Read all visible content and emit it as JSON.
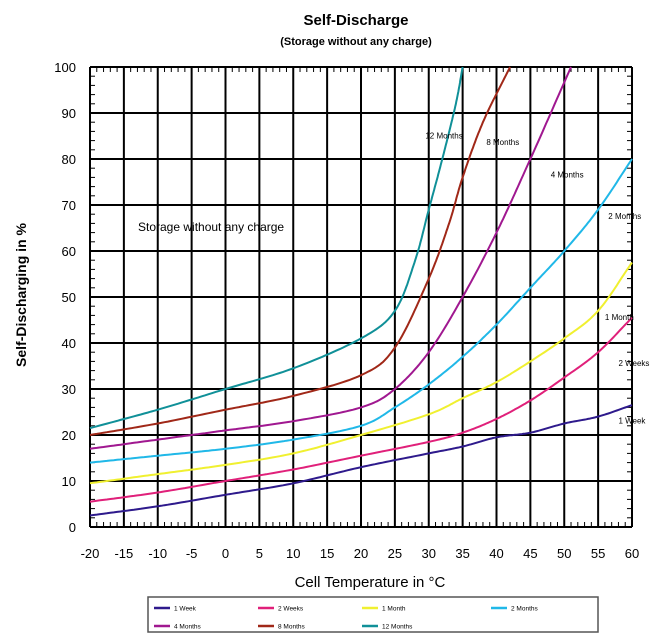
{
  "chart_data": {
    "type": "line",
    "title": "Self-Discharge",
    "subtitle": "(Storage without any charge)",
    "xlabel": "Cell Temperature in °C",
    "ylabel": "Self-Discharging in %",
    "annotation": "Storage without any charge",
    "xlim": [
      -20,
      60
    ],
    "ylim": [
      0,
      100
    ],
    "x_ticks": [
      "-20",
      "-15",
      "-10",
      "-5",
      "0",
      "5",
      "10",
      "15",
      "20",
      "25",
      "30",
      "35",
      "40",
      "45",
      "50",
      "55",
      "60"
    ],
    "y_ticks": [
      "0",
      "10",
      "20",
      "30",
      "40",
      "50",
      "60",
      "70",
      "80",
      "90",
      "100"
    ],
    "grid": true,
    "legend_position": "bottom",
    "series": [
      {
        "name": "1 Week",
        "color": "#2e1a8c",
        "label": "1 Week",
        "x": [
          -20,
          -10,
          0,
          10,
          20,
          30,
          35,
          40,
          45,
          50,
          55,
          60
        ],
        "y": [
          2.5,
          4.5,
          7,
          9.5,
          13,
          16,
          17.5,
          19.5,
          20.5,
          22.5,
          24,
          26.5
        ]
      },
      {
        "name": "2 Weeks",
        "color": "#e0207a",
        "label": "2 Weeks",
        "x": [
          -20,
          -10,
          0,
          10,
          20,
          30,
          35,
          40,
          45,
          50,
          55,
          60
        ],
        "y": [
          5.5,
          7.5,
          10,
          12.5,
          15.5,
          18.5,
          20.5,
          23.5,
          27.5,
          32.5,
          38,
          45.5
        ]
      },
      {
        "name": "1 Month",
        "color": "#f0f030",
        "label": "1 Month",
        "x": [
          -20,
          -10,
          0,
          10,
          20,
          30,
          35,
          40,
          45,
          50,
          55,
          60
        ],
        "y": [
          9.5,
          11.5,
          13.5,
          16,
          20,
          24.5,
          28,
          31.5,
          36,
          41,
          47,
          57.5
        ]
      },
      {
        "name": "2 Months",
        "color": "#20b8e8",
        "label": "2 Months",
        "x": [
          -20,
          -10,
          0,
          10,
          20,
          25,
          30,
          35,
          40,
          45,
          50,
          55,
          60
        ],
        "y": [
          14,
          15.5,
          17,
          19,
          22,
          26,
          31,
          37,
          44,
          52,
          60,
          69,
          80
        ]
      },
      {
        "name": "4 Months",
        "color": "#a01890",
        "label": "4 Months",
        "x": [
          -20,
          -10,
          0,
          10,
          20,
          25,
          30,
          35,
          40,
          45,
          51
        ],
        "y": [
          17,
          19,
          21,
          23,
          26,
          30,
          38,
          50,
          64,
          80,
          100
        ]
      },
      {
        "name": "8 Months",
        "color": "#a02818",
        "label": "8 Months",
        "x": [
          -20,
          -10,
          0,
          10,
          20,
          25,
          30,
          33,
          35,
          38,
          42
        ],
        "y": [
          20,
          22.5,
          25.5,
          28.5,
          33,
          39,
          54,
          66,
          76,
          88,
          100
        ]
      },
      {
        "name": "12 Months",
        "color": "#109098",
        "label": "12 Months",
        "x": [
          -20,
          -10,
          0,
          10,
          20,
          25,
          28,
          30,
          32,
          34,
          35
        ],
        "y": [
          21.5,
          25.5,
          30,
          34.5,
          41,
          47,
          58,
          69,
          80,
          92,
          100
        ]
      }
    ],
    "curve_labels": [
      {
        "series": "12 Months",
        "x": 29.5,
        "y": 84.5
      },
      {
        "series": "8 Months",
        "x": 38.5,
        "y": 83
      },
      {
        "series": "4 Months",
        "x": 48,
        "y": 76
      },
      {
        "series": "2 Months",
        "x": 56.5,
        "y": 67
      },
      {
        "series": "1 Month",
        "x": 56,
        "y": 45
      },
      {
        "series": "2 Weeks",
        "x": 58,
        "y": 35
      },
      {
        "series": "1 Week",
        "x": 58,
        "y": 22.5
      }
    ]
  }
}
